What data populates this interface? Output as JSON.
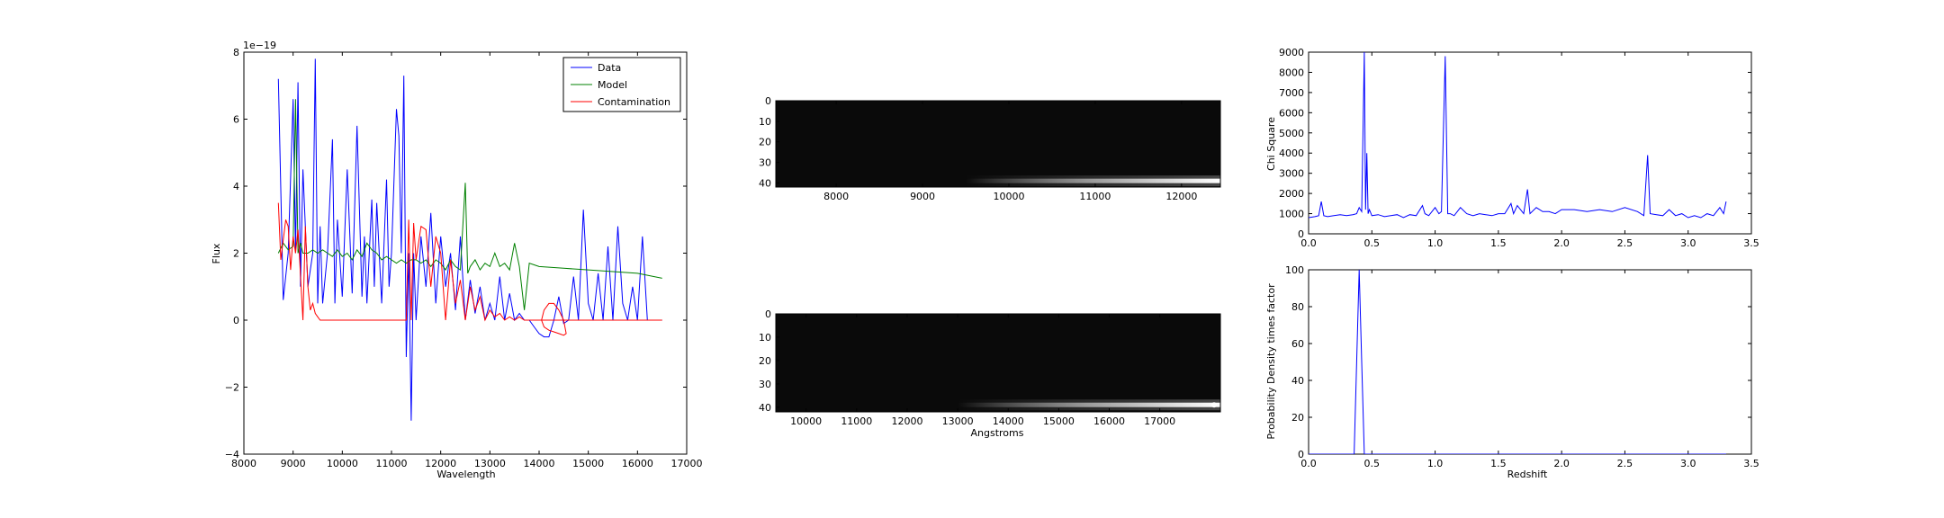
{
  "figure": {
    "panels": [
      {
        "id": "spectrum",
        "title": "",
        "xlabel": "Wavelength",
        "ylabel": "Flux",
        "offset_text": "1e−19"
      },
      {
        "id": "image_top",
        "title": "",
        "xlabel": ""
      },
      {
        "id": "image_bottom",
        "title": "",
        "xlabel": "Angstroms"
      },
      {
        "id": "chisq",
        "title": "",
        "xlabel": "",
        "ylabel": "Chi Square"
      },
      {
        "id": "pdf",
        "title": "",
        "xlabel": "Redshift",
        "ylabel": "Probability Density times factor"
      }
    ]
  },
  "chart_data": [
    {
      "type": "line",
      "xlabel": "Wavelength",
      "ylabel": "Flux",
      "offset_text": "1e−19",
      "xlim": [
        8000,
        17000
      ],
      "ylim": [
        -4,
        8
      ],
      "xticks": [
        8000,
        9000,
        10000,
        11000,
        12000,
        13000,
        14000,
        15000,
        16000,
        17000
      ],
      "yticks": [
        -4,
        -2,
        0,
        2,
        4,
        6,
        8
      ],
      "legend_position": "top-right",
      "series": [
        {
          "name": "Data",
          "color": "#0000ff",
          "x": [
            8700,
            8800,
            8900,
            9000,
            9050,
            9100,
            9150,
            9200,
            9300,
            9400,
            9450,
            9500,
            9550,
            9600,
            9700,
            9800,
            9850,
            9900,
            10000,
            10100,
            10200,
            10300,
            10400,
            10450,
            10500,
            10600,
            10650,
            10700,
            10800,
            10900,
            10950,
            11000,
            11100,
            11150,
            11200,
            11250,
            11300,
            11350,
            11400,
            11450,
            11500,
            11600,
            11700,
            11800,
            11900,
            12000,
            12100,
            12200,
            12300,
            12400,
            12500,
            12600,
            12700,
            12800,
            12900,
            13000,
            13100,
            13200,
            13300,
            13400,
            13500,
            13600,
            13700,
            13800,
            13900,
            14000,
            14100,
            14200,
            14300,
            14400,
            14500,
            14600,
            14700,
            14800,
            14900,
            15000,
            15100,
            15200,
            15300,
            15400,
            15500,
            15600,
            15700,
            15800,
            15900,
            16000,
            16100,
            16200,
            16300,
            16400,
            16500
          ],
          "y": [
            7.2,
            0.6,
            2.0,
            6.6,
            2.0,
            7.1,
            1.0,
            4.5,
            1.0,
            2.0,
            7.8,
            0.5,
            2.8,
            0.5,
            2.0,
            5.4,
            0.5,
            3.0,
            0.7,
            4.5,
            0.8,
            5.8,
            0.7,
            2.5,
            0.5,
            3.6,
            1.0,
            3.5,
            0.5,
            4.2,
            1.0,
            2.0,
            6.3,
            5.5,
            2.0,
            7.3,
            -1.1,
            2.0,
            -3.0,
            2.0,
            0.0,
            2.5,
            1.0,
            3.2,
            0.5,
            2.5,
            1.0,
            2.0,
            0.3,
            2.5,
            0.0,
            1.2,
            0.2,
            1.0,
            0.0,
            0.5,
            0.0,
            1.3,
            0.0,
            0.8,
            0.0,
            0.2,
            0.0,
            0.0,
            -0.2,
            -0.4,
            -0.5,
            -0.5,
            0.0,
            0.7,
            -0.1,
            0.0,
            1.3,
            0.0,
            3.3,
            0.5,
            0.0,
            1.4,
            0.0,
            2.2,
            0.0,
            2.8,
            0.5,
            0.0,
            1.0,
            0.0,
            2.5,
            0.0,
            0.0,
            0.0,
            0.0
          ]
        },
        {
          "name": "Model",
          "color": "#008000",
          "x": [
            8700,
            8800,
            8900,
            9000,
            9050,
            9100,
            9150,
            9200,
            9300,
            9400,
            9500,
            9600,
            9700,
            9800,
            9900,
            10000,
            10100,
            10200,
            10300,
            10400,
            10500,
            10600,
            10700,
            10800,
            10900,
            11000,
            11100,
            11200,
            11300,
            11400,
            11500,
            11600,
            11700,
            11800,
            11900,
            12000,
            12100,
            12200,
            12300,
            12400,
            12500,
            12550,
            12600,
            12700,
            12800,
            12900,
            13000,
            13100,
            13200,
            13300,
            13400,
            13500,
            13600,
            13700,
            13800,
            13900,
            14000,
            14500,
            15000,
            15500,
            16000,
            16500
          ],
          "y": [
            2.0,
            2.3,
            2.1,
            2.2,
            6.6,
            2.0,
            2.3,
            2.0,
            2.0,
            2.1,
            2.0,
            2.1,
            2.0,
            1.9,
            2.1,
            1.9,
            2.0,
            1.8,
            2.1,
            1.9,
            2.3,
            2.1,
            2.0,
            1.8,
            1.9,
            1.8,
            1.7,
            1.8,
            1.7,
            1.8,
            1.8,
            1.7,
            1.8,
            1.6,
            1.8,
            1.7,
            1.5,
            1.8,
            1.6,
            1.5,
            4.1,
            1.4,
            1.6,
            1.8,
            1.5,
            1.7,
            1.6,
            2.0,
            1.6,
            1.7,
            1.5,
            2.3,
            1.6,
            0.3,
            1.7,
            1.65,
            1.6,
            1.55,
            1.5,
            1.45,
            1.4,
            1.25
          ]
        },
        {
          "name": "Contamination",
          "color": "#ff0000",
          "x": [
            8700,
            8750,
            8850,
            8900,
            8950,
            9000,
            9050,
            9100,
            9200,
            9250,
            9300,
            9350,
            9400,
            9450,
            9500,
            9550,
            9600,
            9700,
            9800,
            10000,
            10500,
            11000,
            11300,
            11350,
            11400,
            11450,
            11500,
            11600,
            11700,
            11800,
            11900,
            12000,
            12100,
            12200,
            12300,
            12400,
            12500,
            12600,
            12700,
            12800,
            12900,
            13000,
            13100,
            13200,
            13300,
            13400,
            13500,
            13600,
            13700,
            13800,
            13900,
            14000,
            14050,
            14100,
            14200,
            14300,
            14400,
            14500,
            14550,
            14500,
            14400,
            14300,
            14200,
            14100,
            14050,
            14100,
            15000,
            16000,
            16500
          ],
          "y": [
            3.5,
            1.8,
            3.0,
            2.8,
            1.5,
            2.5,
            2.0,
            2.7,
            0.0,
            2.8,
            1.0,
            0.3,
            0.5,
            0.2,
            0.1,
            0.0,
            0.0,
            0.0,
            0.0,
            0.0,
            0.0,
            0.0,
            0.0,
            3.0,
            0.0,
            2.9,
            1.8,
            2.8,
            2.7,
            1.0,
            2.5,
            2.0,
            0.0,
            1.8,
            0.5,
            1.2,
            0.0,
            1.0,
            0.3,
            0.7,
            0.0,
            0.3,
            0.1,
            0.2,
            0.0,
            0.1,
            0.0,
            0.1,
            0.0,
            0.0,
            0.0,
            0.0,
            0.0,
            0.3,
            0.5,
            0.5,
            0.3,
            0.0,
            -0.4,
            -0.45,
            -0.4,
            -0.35,
            -0.3,
            -0.2,
            0.0,
            0.0,
            0.0,
            0.0,
            0.0
          ]
        }
      ]
    },
    {
      "type": "heatmap",
      "xticks": [
        8000,
        9000,
        10000,
        11000,
        12000
      ],
      "xlim": [
        7300,
        12450
      ],
      "yticks": [
        0,
        10,
        20,
        30,
        40
      ],
      "ylim": [
        0,
        42
      ],
      "xlabel": "",
      "bright_band": {
        "row": 39,
        "x_start": 9500,
        "x_end": 12450
      }
    },
    {
      "type": "heatmap",
      "xticks": [
        10000,
        11000,
        12000,
        13000,
        14000,
        15000,
        16000,
        17000
      ],
      "xlim": [
        9400,
        18200
      ],
      "yticks": [
        0,
        10,
        20,
        30,
        40
      ],
      "ylim": [
        0,
        42
      ],
      "xlabel": "Angstroms",
      "bright_band": {
        "row": 39,
        "x_start": 13000,
        "x_end": 18200
      }
    },
    {
      "type": "line",
      "xlabel": "",
      "ylabel": "Chi Square",
      "xlim": [
        0.0,
        3.5
      ],
      "ylim": [
        0,
        9000
      ],
      "xticks": [
        0.0,
        0.5,
        1.0,
        1.5,
        2.0,
        2.5,
        3.0,
        3.5
      ],
      "yticks": [
        0,
        1000,
        2000,
        3000,
        4000,
        5000,
        6000,
        7000,
        8000,
        9000
      ],
      "series": [
        {
          "name": "",
          "color": "#0000ff",
          "x": [
            0.0,
            0.05,
            0.08,
            0.1,
            0.12,
            0.15,
            0.2,
            0.25,
            0.3,
            0.35,
            0.38,
            0.4,
            0.42,
            0.44,
            0.45,
            0.46,
            0.47,
            0.48,
            0.5,
            0.55,
            0.6,
            0.65,
            0.7,
            0.75,
            0.8,
            0.85,
            0.9,
            0.92,
            0.95,
            1.0,
            1.03,
            1.05,
            1.08,
            1.1,
            1.12,
            1.15,
            1.2,
            1.25,
            1.3,
            1.35,
            1.4,
            1.45,
            1.5,
            1.55,
            1.6,
            1.62,
            1.65,
            1.7,
            1.73,
            1.75,
            1.8,
            1.85,
            1.9,
            1.95,
            2.0,
            2.1,
            2.2,
            2.3,
            2.4,
            2.5,
            2.6,
            2.65,
            2.68,
            2.7,
            2.75,
            2.8,
            2.85,
            2.9,
            2.95,
            3.0,
            3.05,
            3.1,
            3.15,
            3.2,
            3.25,
            3.28,
            3.3
          ],
          "y": [
            800,
            850,
            900,
            1600,
            900,
            850,
            900,
            950,
            900,
            950,
            1000,
            1300,
            1100,
            9000,
            1200,
            4000,
            1000,
            1200,
            900,
            950,
            850,
            900,
            950,
            800,
            950,
            900,
            1400,
            1000,
            900,
            1300,
            1000,
            1100,
            8800,
            1000,
            1000,
            900,
            1300,
            1000,
            900,
            1000,
            950,
            900,
            1000,
            1000,
            1500,
            1000,
            1400,
            1000,
            2200,
            1000,
            1300,
            1100,
            1100,
            1000,
            1200,
            1200,
            1100,
            1200,
            1100,
            1300,
            1100,
            900,
            3900,
            1000,
            950,
            900,
            1200,
            900,
            1000,
            800,
            900,
            800,
            1000,
            900,
            1300,
            1000,
            1600
          ]
        }
      ]
    },
    {
      "type": "line",
      "xlabel": "Redshift",
      "ylabel": "Probability Density times factor",
      "xlim": [
        0.0,
        3.5
      ],
      "ylim": [
        0,
        100
      ],
      "xticks": [
        0.0,
        0.5,
        1.0,
        1.5,
        2.0,
        2.5,
        3.0,
        3.5
      ],
      "yticks": [
        0,
        20,
        40,
        60,
        80,
        100
      ],
      "series": [
        {
          "name": "",
          "color": "#0000ff",
          "x": [
            0.0,
            0.36,
            0.38,
            0.4,
            0.42,
            0.44,
            3.3
          ],
          "y": [
            0,
            0,
            50,
            100,
            50,
            0,
            0
          ]
        }
      ]
    }
  ]
}
